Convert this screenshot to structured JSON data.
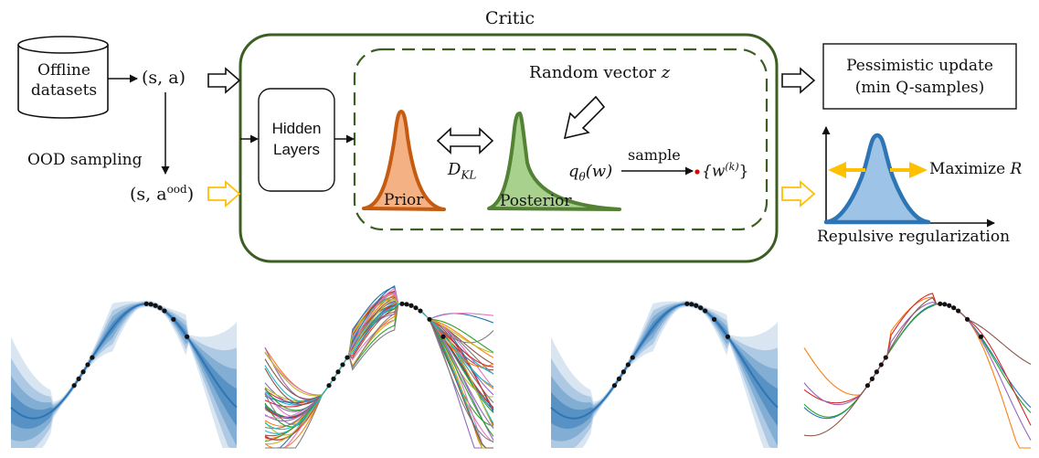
{
  "diagram": {
    "critic_title": "Critic",
    "offline_datasets": [
      "Offline",
      "datasets"
    ],
    "state_action": "(s, a)",
    "ood_sampling": "OOD sampling",
    "ood_state_action": "(s, a",
    "ood_superscript": "ood",
    "ood_close": ")",
    "hidden_layers": [
      "Hidden",
      "Layers"
    ],
    "random_vector": "Random vector ",
    "random_vector_var": "z",
    "d_kl": "D",
    "d_kl_sub": "KL",
    "prior": "Prior",
    "posterior": "Posterior",
    "q_theta": "q",
    "q_theta_sub": "θ",
    "q_theta_arg": "(w)",
    "sample": "sample",
    "samples_set": "{w",
    "samples_sup": "(k)",
    "samples_close": "}",
    "pessimistic_update": [
      "Pessimistic update",
      "(min Q-samples)"
    ],
    "maximize": "Maximize ",
    "maximize_var": "R",
    "repulsive": "Repulsive regularization"
  },
  "colors": {
    "critic_border": "#3d5e23",
    "prior_stroke": "#c55a11",
    "prior_fill": "#f4b183",
    "posterior_stroke": "#548235",
    "posterior_fill": "#a9d18e",
    "repulsive_stroke": "#2e75b6",
    "repulsive_fill": "#9dc3e6",
    "arrow_yellow": "#ffc000",
    "band_blue": "#2e75b6",
    "sample_dot": "#e00000"
  }
}
